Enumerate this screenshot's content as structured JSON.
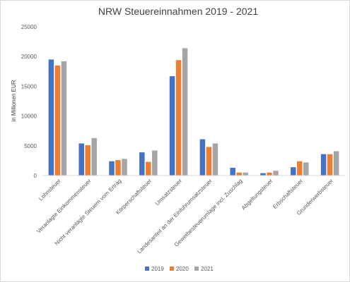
{
  "chart_data": {
    "type": "bar",
    "title": "NRW Steuereinnahmen 2019 - 2021",
    "xlabel": "",
    "ylabel": "in Millionen EUR",
    "ylim": [
      0,
      25000
    ],
    "yticks": [
      "0",
      "5000",
      "10000",
      "15000",
      "20000",
      "25000"
    ],
    "grid": false,
    "legend_position": "bottom",
    "categories": [
      "Lohnsteuer",
      "Veranlagte Einkommensteuer",
      "Nicht veranlagte Steuern vom Ertrag",
      "Körperschaftsteuer",
      "Umsatzsteuer",
      "Landesanteil an der Einfuhrumsatzsteuer",
      "Gewerbesteuerumlage incl. Zuschlag",
      "Abgeltungsteuer",
      "Erbschaftsteuer",
      "Grunderwerbsteuer"
    ],
    "series": [
      {
        "name": "2019",
        "color": "#4472c4",
        "values": [
          19500,
          5400,
          2400,
          3900,
          16700,
          6100,
          1300,
          400,
          1400,
          3600
        ]
      },
      {
        "name": "2020",
        "color": "#ed7d31",
        "values": [
          18500,
          5100,
          2600,
          2300,
          19400,
          4800,
          500,
          500,
          2400,
          3600
        ]
      },
      {
        "name": "2021",
        "color": "#a5a5a5",
        "values": [
          19200,
          6300,
          2800,
          4200,
          21400,
          5400,
          500,
          800,
          2200,
          4100
        ]
      }
    ]
  }
}
